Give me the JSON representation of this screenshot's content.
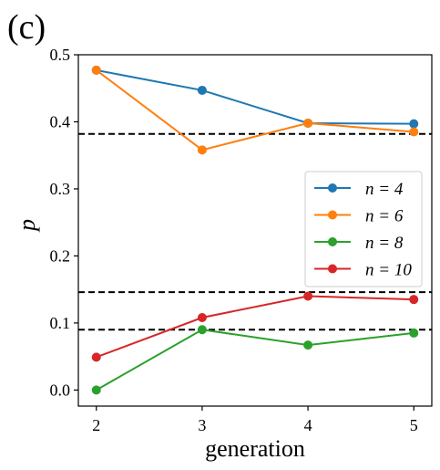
{
  "panel_label": "(c)",
  "chart_data": {
    "type": "line",
    "title": "",
    "xlabel": "generation",
    "ylabel": "p",
    "x": [
      2,
      3,
      4,
      5
    ],
    "xticks": [
      2,
      3,
      4,
      5
    ],
    "yticks": [
      0.0,
      0.1,
      0.2,
      0.3,
      0.4,
      0.5
    ],
    "ytick_labels": [
      "0.0",
      "0.1",
      "0.2",
      "0.3",
      "0.4",
      "0.5"
    ],
    "xlim": [
      1.83,
      5.17
    ],
    "ylim": [
      -0.024,
      0.5
    ],
    "grid": false,
    "legend_position": "center-right",
    "series": [
      {
        "name": "n = 4",
        "color": "#1f77b4",
        "values": [
          0.477,
          0.447,
          0.398,
          0.397
        ]
      },
      {
        "name": "n = 6",
        "color": "#ff7f0e",
        "values": [
          0.477,
          0.358,
          0.398,
          0.385
        ]
      },
      {
        "name": "n = 8",
        "color": "#2ca02c",
        "values": [
          0.0,
          0.09,
          0.067,
          0.085
        ]
      },
      {
        "name": "n = 10",
        "color": "#d62728",
        "values": [
          0.049,
          0.108,
          0.14,
          0.135
        ]
      }
    ],
    "reference_lines": [
      {
        "y": 0.382,
        "style": "dashed",
        "color": "#000000"
      },
      {
        "y": 0.146,
        "style": "dashed",
        "color": "#000000"
      },
      {
        "y": 0.09,
        "style": "dashed",
        "color": "#000000"
      }
    ]
  }
}
